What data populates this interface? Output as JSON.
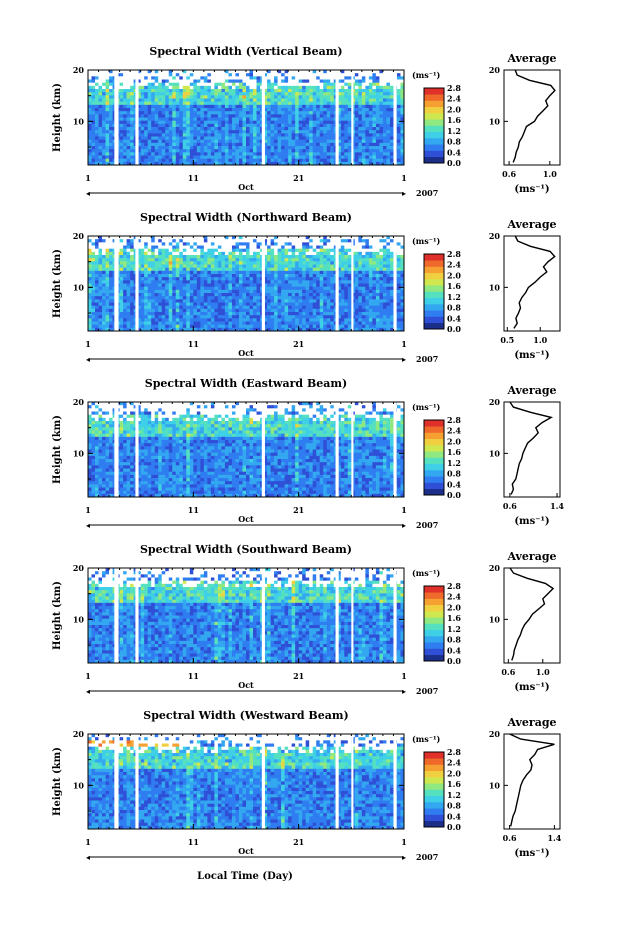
{
  "figure": {
    "xlabel": "Local Time (Day)",
    "year": "2007",
    "month": "Oct",
    "unit": "(ms⁻¹)",
    "average_title": "Average",
    "colorbar_ticks": [
      "0.0",
      "0.4",
      "0.8",
      "1.2",
      "1.6",
      "2.0",
      "2.4",
      "2.8"
    ],
    "colormap": [
      "#1b2e8a",
      "#2f4fd6",
      "#2f7df0",
      "#33a8f0",
      "#3fd0e8",
      "#55e0c0",
      "#8fe880",
      "#d0e850",
      "#f0d040",
      "#f5a030",
      "#ef6a2a",
      "#e0302a"
    ]
  },
  "chart_data": [
    {
      "type": "heatmap",
      "title": "Spectral Width (Vertical Beam)",
      "ylabel": "Height (km)",
      "x_ticks": [
        "1",
        "11",
        "21",
        "1"
      ],
      "y_ticks": [
        "10",
        "20"
      ],
      "ylim": [
        1.5,
        20
      ],
      "zlim": [
        0.0,
        2.8
      ],
      "data_gaps_day": [
        [
          3.5,
          3.9
        ],
        [
          5.5,
          5.8
        ],
        [
          17.5,
          17.8
        ],
        [
          24.5,
          24.8
        ],
        [
          26.0,
          26.2
        ],
        [
          30.0,
          30.3
        ]
      ],
      "average_profile": {
        "title": "Average",
        "xlabel": "(ms⁻¹)",
        "x_ticks": [
          "0.6",
          "1.0"
        ],
        "y_ticks": [
          "10",
          "20"
        ],
        "xlim": [
          0.55,
          1.1
        ],
        "height_km": [
          2,
          3,
          4,
          5,
          6,
          7,
          8,
          9,
          10,
          11,
          12,
          13,
          14,
          15,
          16,
          17,
          18,
          19,
          20
        ],
        "width_ms": [
          0.64,
          0.66,
          0.67,
          0.69,
          0.7,
          0.73,
          0.75,
          0.77,
          0.85,
          0.88,
          0.93,
          0.98,
          0.96,
          1.0,
          1.05,
          1.01,
          0.8,
          0.68,
          0.66
        ]
      }
    },
    {
      "type": "heatmap",
      "title": "Spectral Width (Northward Beam)",
      "ylabel": "Height (km)",
      "x_ticks": [
        "1",
        "11",
        "21",
        "1"
      ],
      "y_ticks": [
        "10",
        "20"
      ],
      "ylim": [
        1.5,
        20
      ],
      "zlim": [
        0.0,
        2.8
      ],
      "data_gaps_day": [
        [
          3.5,
          3.9
        ],
        [
          5.5,
          5.8
        ],
        [
          17.5,
          17.8
        ],
        [
          24.5,
          24.8
        ],
        [
          26.0,
          26.2
        ],
        [
          30.0,
          30.3
        ]
      ],
      "average_profile": {
        "title": "Average",
        "xlabel": "(ms⁻¹)",
        "x_ticks": [
          "0.5",
          "1.0"
        ],
        "y_ticks": [
          "10",
          "20"
        ],
        "xlim": [
          0.45,
          1.3
        ],
        "height_km": [
          2,
          3,
          4,
          5,
          6,
          7,
          8,
          9,
          10,
          11,
          12,
          13,
          14,
          15,
          16,
          17,
          18,
          19,
          20
        ],
        "width_ms": [
          0.6,
          0.65,
          0.63,
          0.67,
          0.7,
          0.68,
          0.72,
          0.78,
          0.82,
          0.92,
          1.0,
          1.1,
          1.05,
          1.12,
          1.22,
          1.15,
          0.85,
          0.66,
          0.62
        ]
      }
    },
    {
      "type": "heatmap",
      "title": "Spectral Width (Eastward Beam)",
      "ylabel": "Height (km)",
      "x_ticks": [
        "1",
        "11",
        "21",
        "1"
      ],
      "y_ticks": [
        "10",
        "20"
      ],
      "ylim": [
        1.5,
        20
      ],
      "zlim": [
        0.0,
        2.8
      ],
      "data_gaps_day": [
        [
          3.5,
          3.9
        ],
        [
          5.5,
          5.8
        ],
        [
          17.5,
          17.8
        ],
        [
          24.5,
          24.8
        ],
        [
          26.0,
          26.2
        ],
        [
          30.0,
          30.3
        ]
      ],
      "average_profile": {
        "title": "Average",
        "xlabel": "(ms⁻¹)",
        "x_ticks": [
          "0.6",
          "1.4"
        ],
        "y_ticks": [
          "10",
          "20"
        ],
        "xlim": [
          0.5,
          1.45
        ],
        "height_km": [
          2,
          3,
          4,
          5,
          6,
          7,
          8,
          9,
          10,
          11,
          12,
          13,
          14,
          15,
          16,
          17,
          18,
          19,
          20
        ],
        "width_ms": [
          0.62,
          0.66,
          0.64,
          0.7,
          0.72,
          0.74,
          0.76,
          0.8,
          0.82,
          0.86,
          0.9,
          1.0,
          1.08,
          1.04,
          1.15,
          1.3,
          0.95,
          0.66,
          0.6
        ]
      }
    },
    {
      "type": "heatmap",
      "title": "Spectral Width (Southward Beam)",
      "ylabel": "Height (km)",
      "x_ticks": [
        "1",
        "11",
        "21",
        "1"
      ],
      "y_ticks": [
        "10",
        "20"
      ],
      "ylim": [
        1.5,
        20
      ],
      "zlim": [
        0.0,
        2.8
      ],
      "data_gaps_day": [
        [
          3.5,
          3.9
        ],
        [
          5.5,
          5.8
        ],
        [
          17.5,
          17.8
        ],
        [
          24.5,
          24.8
        ],
        [
          26.0,
          26.2
        ],
        [
          30.0,
          30.3
        ]
      ],
      "average_profile": {
        "title": "Average",
        "xlabel": "(ms⁻¹)",
        "x_ticks": [
          "0.6",
          "1.0"
        ],
        "y_ticks": [
          "10",
          "20"
        ],
        "xlim": [
          0.55,
          1.2
        ],
        "height_km": [
          2,
          3,
          4,
          5,
          6,
          7,
          8,
          9,
          10,
          11,
          12,
          13,
          14,
          15,
          16,
          17,
          18,
          19,
          20
        ],
        "width_ms": [
          0.64,
          0.66,
          0.67,
          0.69,
          0.71,
          0.74,
          0.76,
          0.79,
          0.84,
          0.88,
          0.95,
          1.02,
          1.0,
          1.06,
          1.12,
          1.03,
          0.82,
          0.66,
          0.62
        ]
      }
    },
    {
      "type": "heatmap",
      "title": "Spectral Width (Westward Beam)",
      "ylabel": "Height (km)",
      "x_ticks": [
        "1",
        "11",
        "21",
        "1"
      ],
      "y_ticks": [
        "10",
        "20"
      ],
      "ylim": [
        1.5,
        20
      ],
      "zlim": [
        0.0,
        2.8
      ],
      "data_gaps_day": [
        [
          3.5,
          3.9
        ],
        [
          5.5,
          5.8
        ],
        [
          17.5,
          17.8
        ],
        [
          24.5,
          24.8
        ],
        [
          26.0,
          26.2
        ],
        [
          30.0,
          30.3
        ]
      ],
      "average_profile": {
        "title": "Average",
        "xlabel": "(ms⁻¹)",
        "x_ticks": [
          "0.6",
          "1.4"
        ],
        "y_ticks": [
          "10",
          "20"
        ],
        "xlim": [
          0.5,
          1.5
        ],
        "height_km": [
          2,
          3,
          4,
          5,
          6,
          7,
          8,
          9,
          10,
          11,
          12,
          13,
          14,
          15,
          16,
          17,
          18,
          19,
          20
        ],
        "width_ms": [
          0.62,
          0.64,
          0.66,
          0.7,
          0.72,
          0.74,
          0.76,
          0.78,
          0.8,
          0.84,
          0.9,
          0.98,
          1.0,
          0.96,
          1.05,
          1.1,
          1.4,
          0.8,
          0.6
        ]
      }
    }
  ]
}
